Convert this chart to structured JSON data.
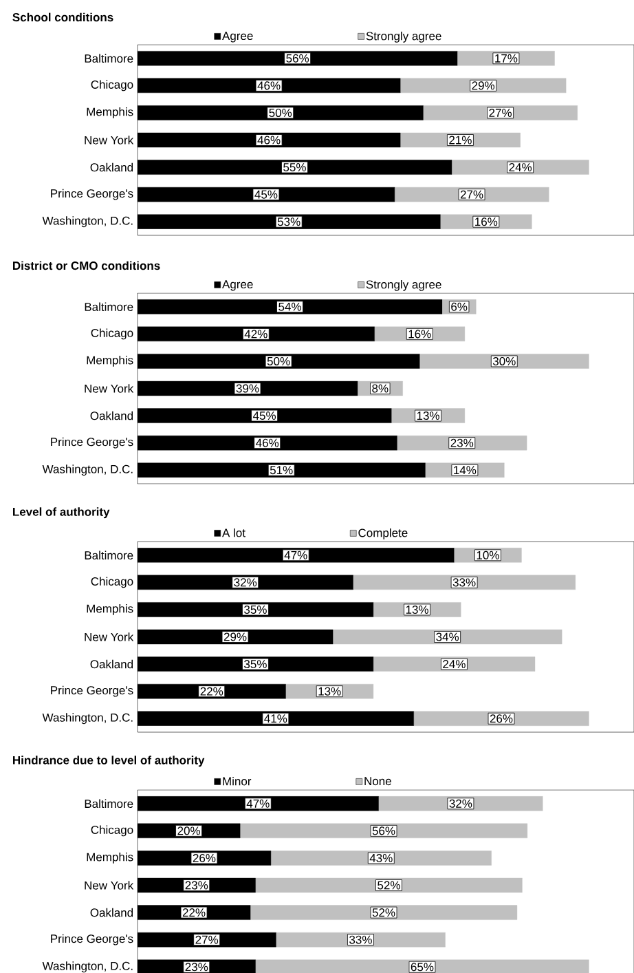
{
  "chart_data": [
    {
      "type": "bar",
      "orientation": "horizontal",
      "stacked": true,
      "legend": "top",
      "title": "School conditions",
      "categories": [
        "Baltimore",
        "Chicago",
        "Memphis",
        "New York",
        "Oakland",
        "Prince George's",
        "Washington, D.C."
      ],
      "series": [
        {
          "name": "Agree",
          "color": "#000000",
          "values": [
            56,
            46,
            50,
            46,
            55,
            45,
            53
          ],
          "value_labels": [
            "56%",
            "46%",
            "50%",
            "46%",
            "55%",
            "45%",
            "53%"
          ]
        },
        {
          "name": "Strongly agree",
          "color": "#c0c0c0",
          "values": [
            17,
            29,
            27,
            21,
            24,
            27,
            16
          ],
          "value_labels": [
            "17%",
            "29%",
            "27%",
            "21%",
            "24%",
            "27%",
            "16%"
          ]
        }
      ]
    },
    {
      "type": "bar",
      "orientation": "horizontal",
      "stacked": true,
      "legend": "top",
      "title": "District or CMO conditions",
      "categories": [
        "Baltimore",
        "Chicago",
        "Memphis",
        "New York",
        "Oakland",
        "Prince George's",
        "Washington, D.C."
      ],
      "series": [
        {
          "name": "Agree",
          "color": "#000000",
          "values": [
            54,
            42,
            50,
            39,
            45,
            46,
            51
          ],
          "value_labels": [
            "54%",
            "42%",
            "50%",
            "39%",
            "45%",
            "46%",
            "51%"
          ]
        },
        {
          "name": "Strongly agree",
          "color": "#c0c0c0",
          "values": [
            6,
            16,
            30,
            8,
            13,
            23,
            14
          ],
          "value_labels": [
            "6%",
            "16%",
            "30%",
            "8%",
            "13%",
            "23%",
            "14%"
          ]
        }
      ]
    },
    {
      "type": "bar",
      "orientation": "horizontal",
      "stacked": true,
      "legend": "top",
      "title": "Level of authority",
      "categories": [
        "Baltimore",
        "Chicago",
        "Memphis",
        "New York",
        "Oakland",
        "Prince George's",
        "Washington, D.C."
      ],
      "series": [
        {
          "name": "A lot",
          "color": "#000000",
          "values": [
            47,
            32,
            35,
            29,
            35,
            22,
            41
          ],
          "value_labels": [
            "47%",
            "32%",
            "35%",
            "29%",
            "35%",
            "22%",
            "41%"
          ]
        },
        {
          "name": "Complete",
          "color": "#c0c0c0",
          "values": [
            10,
            33,
            13,
            34,
            24,
            13,
            26
          ],
          "value_labels": [
            "10%",
            "33%",
            "13%",
            "34%",
            "24%",
            "13%",
            "26%"
          ]
        }
      ]
    },
    {
      "type": "bar",
      "orientation": "horizontal",
      "stacked": true,
      "legend": "top",
      "title": "Hindrance due to level of authority",
      "categories": [
        "Baltimore",
        "Chicago",
        "Memphis",
        "New York",
        "Oakland",
        "Prince George's",
        "Washington, D.C."
      ],
      "series": [
        {
          "name": "Minor",
          "color": "#000000",
          "values": [
            47,
            20,
            26,
            23,
            22,
            27,
            23
          ],
          "value_labels": [
            "47%",
            "20%",
            "26%",
            "23%",
            "22%",
            "27%",
            "23%"
          ]
        },
        {
          "name": "None",
          "color": "#c0c0c0",
          "values": [
            32,
            56,
            43,
            52,
            52,
            33,
            65
          ],
          "value_labels": [
            "32%",
            "56%",
            "43%",
            "52%",
            "52%",
            "33%",
            "65%"
          ]
        }
      ]
    }
  ]
}
